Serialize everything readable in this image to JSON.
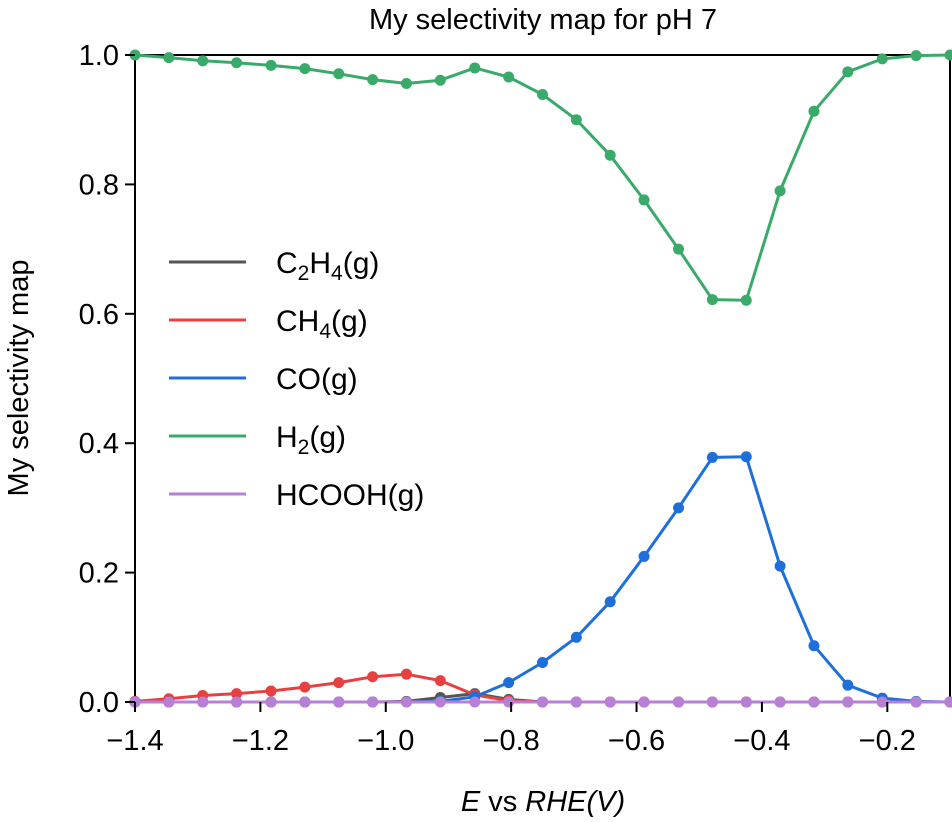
{
  "chart_data": {
    "type": "line",
    "title": "My selectivity map for pH 7",
    "xlabel": {
      "italic_prefix": "E",
      "middle": " vs ",
      "italic_suffix": "RHE(V)"
    },
    "ylabel": "My selectivity map",
    "xlim": [
      -1.4,
      -0.1
    ],
    "ylim": [
      0.0,
      1.0
    ],
    "xticks": [
      -1.4,
      -1.2,
      -1.0,
      -0.8,
      -0.6,
      -0.4,
      -0.2
    ],
    "xtick_labels": [
      "−1.4",
      "−1.2",
      "−1.0",
      "−0.8",
      "−0.6",
      "−0.4",
      "−0.2"
    ],
    "yticks": [
      0.0,
      0.2,
      0.4,
      0.6,
      0.8,
      1.0
    ],
    "ytick_labels": [
      "0.0",
      "0.2",
      "0.4",
      "0.6",
      "0.8",
      "1.0"
    ],
    "grid": false,
    "legend_placement": "center-left",
    "x": [
      -1.4,
      -1.346,
      -1.292,
      -1.238,
      -1.183,
      -1.129,
      -1.075,
      -1.021,
      -0.967,
      -0.913,
      -0.858,
      -0.804,
      -0.75,
      -0.696,
      -0.642,
      -0.588,
      -0.533,
      -0.479,
      -0.425,
      -0.371,
      -0.317,
      -0.263,
      -0.208,
      -0.154,
      -0.1
    ],
    "series": [
      {
        "name": "C2H4(g)",
        "legend": {
          "a": "C",
          "sub1": "2",
          "b": "H",
          "sub2": "4",
          "c": "(g)"
        },
        "color": "#555555",
        "values": [
          0,
          0,
          0,
          0,
          0,
          0,
          0,
          0,
          0.001,
          0.007,
          0.013,
          0.004,
          0,
          0,
          0,
          0,
          0,
          0,
          0,
          0,
          0,
          0,
          0,
          0,
          0
        ]
      },
      {
        "name": "CH4(g)",
        "legend": {
          "a": "CH",
          "sub1": "4",
          "b": "",
          "sub2": "",
          "c": "(g)"
        },
        "color": "#e84040",
        "values": [
          0.001,
          0.005,
          0.01,
          0.013,
          0.017,
          0.023,
          0.03,
          0.039,
          0.043,
          0.033,
          0.011,
          0.002,
          0,
          0,
          0,
          0,
          0,
          0,
          0,
          0,
          0,
          0,
          0,
          0,
          0
        ]
      },
      {
        "name": "CO(g)",
        "legend": {
          "a": "CO",
          "sub1": "",
          "b": "",
          "sub2": "",
          "c": "(g)"
        },
        "color": "#1e6fd9",
        "values": [
          0,
          0,
          0,
          0,
          0,
          0,
          0,
          0,
          0,
          0.001,
          0.008,
          0.03,
          0.061,
          0.1,
          0.155,
          0.225,
          0.3,
          0.378,
          0.379,
          0.21,
          0.087,
          0.026,
          0.006,
          0.001,
          0
        ]
      },
      {
        "name": "H2(g)",
        "legend": {
          "a": "H",
          "sub1": "2",
          "b": "",
          "sub2": "",
          "c": "(g)"
        },
        "color": "#3aaa6a",
        "values": [
          1.0,
          0.996,
          0.991,
          0.988,
          0.984,
          0.979,
          0.971,
          0.962,
          0.956,
          0.961,
          0.98,
          0.966,
          0.939,
          0.9,
          0.845,
          0.776,
          0.7,
          0.622,
          0.621,
          0.79,
          0.913,
          0.974,
          0.994,
          0.999,
          1.0
        ]
      },
      {
        "name": "HCOOH(g)",
        "legend": {
          "a": "HCOOH",
          "sub1": "",
          "b": "",
          "sub2": "",
          "c": "(g)"
        },
        "color": "#b77fd6",
        "values": [
          0,
          0,
          0,
          0,
          0,
          0,
          0,
          0,
          0,
          0,
          0,
          0,
          0,
          0,
          0,
          0,
          0,
          0,
          0,
          0,
          0,
          0,
          0,
          0,
          0
        ]
      }
    ]
  }
}
